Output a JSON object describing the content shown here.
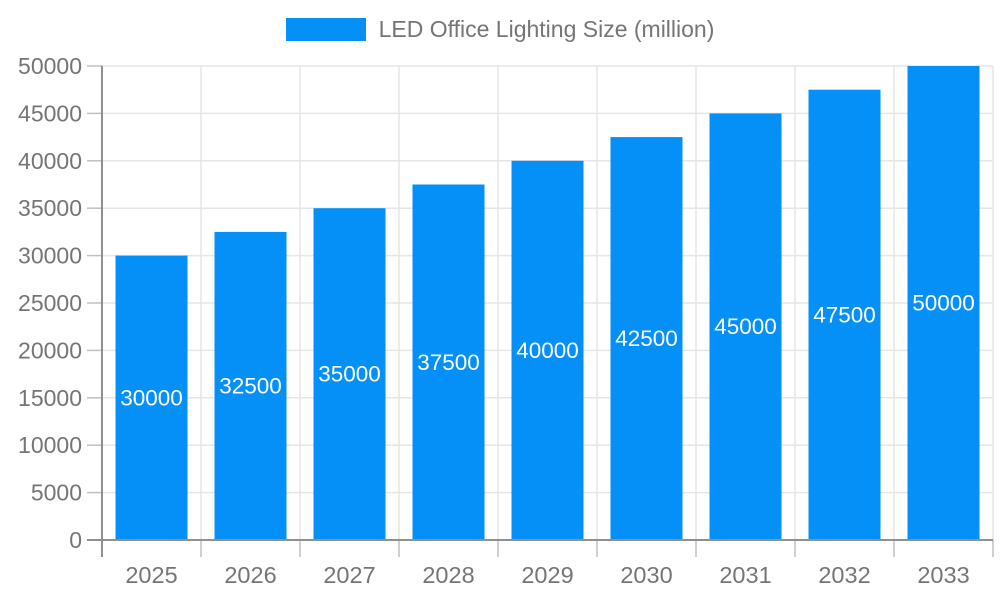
{
  "legend": {
    "label": "LED Office Lighting Size (million)"
  },
  "chart_data": {
    "type": "bar",
    "title": "LED Office Lighting Size (million)",
    "categories": [
      "2025",
      "2026",
      "2027",
      "2028",
      "2029",
      "2030",
      "2031",
      "2032",
      "2033"
    ],
    "values": [
      30000,
      32500,
      35000,
      37500,
      40000,
      42500,
      45000,
      47500,
      50000
    ],
    "bar_labels": [
      "30000",
      "32500",
      "35000",
      "37500",
      "40000",
      "42500",
      "45000",
      "47500",
      "50000"
    ],
    "xlabel": "",
    "ylabel": "",
    "ylim": [
      0,
      50000
    ],
    "ytick_step": 5000,
    "ytick_labels": [
      "0",
      "5000",
      "10000",
      "15000",
      "20000",
      "25000",
      "30000",
      "35000",
      "40000",
      "45000",
      "50000"
    ],
    "grid": true,
    "legend_position": "top-center",
    "colors": {
      "bar": "#0590f8",
      "bar_label": "#ffffff",
      "axis_line": "#909090",
      "tick_mark": "#c0c0c0",
      "grid_line": "#e6e6e6",
      "tick_text": "#757575"
    }
  }
}
